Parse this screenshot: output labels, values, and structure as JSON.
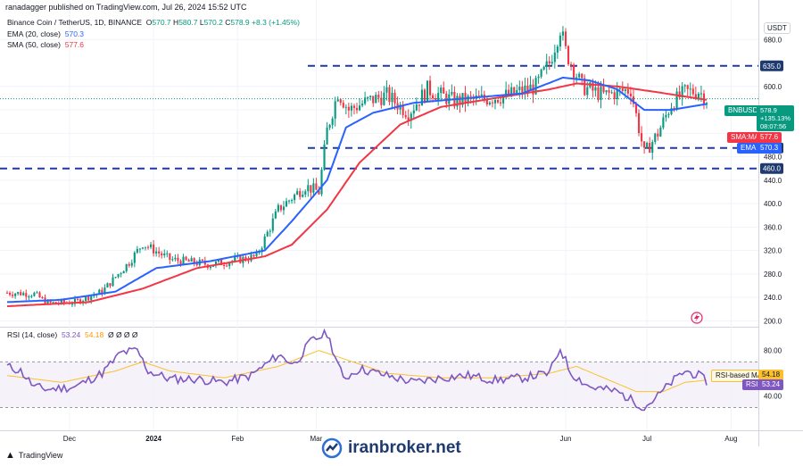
{
  "header": {
    "publisher": "ranadagger published on TradingView.com, Jul 26, 2024 15:52 UTC"
  },
  "symbol": {
    "name": "Binance Coin / TetherUS, 1D, BINANCE",
    "o_label": "O",
    "o": "570.7",
    "h_label": "H",
    "h": "580.7",
    "l_label": "L",
    "l": "570.2",
    "c_label": "C",
    "c": "578.9",
    "change": "+8.3 (+1.45%)"
  },
  "indicators": {
    "ema_label": "EMA (20, close)",
    "ema_value": "570.3",
    "sma_label": "SMA (50, close)",
    "sma_value": "577.6",
    "rsi_label": "RSI (14, close)",
    "rsi_value": "53.24",
    "rsi_ma_value": "54.18",
    "rsi_extra": "Ø Ø Ø Ø"
  },
  "price_axis": {
    "currency": "USDT"
  },
  "tags": {
    "symbol_tag": "BNBUSDT",
    "price": "578.9",
    "pct": "+135.13%",
    "countdown": "08:07:56",
    "sma_ma_label": "SMA:MA",
    "sma_val": "577.6",
    "ema_label": "EMA",
    "ema_val": "570.3",
    "rsi_ma_label": "RSI-based MA",
    "rsi_ma_val": "54.18",
    "rsi_label": "RSI",
    "rsi_val": "53.24"
  },
  "levels": [
    {
      "value": 635.0,
      "label": "635.0"
    },
    {
      "value": 495.0,
      "label": "495.0"
    },
    {
      "value": 460.0,
      "label": "460.0"
    }
  ],
  "footer": {
    "brand": "TradingView"
  },
  "watermark": {
    "text": "iranbroker.net"
  },
  "colors": {
    "up": "#089981",
    "down": "#f23645",
    "ema": "#2962ff",
    "sma": "#f23645",
    "rsi": "#7e57c2",
    "rsi_ma": "#fbc02d"
  },
  "chart_data": [
    {
      "type": "candlestick",
      "title": "Binance Coin / TetherUS, 1D, BINANCE",
      "ylim": [
        190,
        720
      ],
      "y_ticks": [
        200,
        240,
        280,
        320,
        360,
        400,
        440,
        480,
        520,
        560,
        600,
        680
      ],
      "y_tick_labels": [
        "200.0",
        "240.0",
        "280.0",
        "320.0",
        "360.0",
        "400.0",
        "440.0",
        "480.0",
        "",
        "",
        "600.0",
        "680.0"
      ],
      "x_ticks": [
        "Dec",
        "2024",
        "Feb",
        "Mar",
        "Jun",
        "Jul",
        "Aug"
      ],
      "x_tick_days": [
        23,
        54,
        85,
        114,
        206,
        236,
        267
      ],
      "horizontal_levels": [
        635,
        495,
        460
      ],
      "series": [
        {
          "name": "Price",
          "anchors": [
            [
              0,
              248
            ],
            [
              10,
              246
            ],
            [
              15,
              230
            ],
            [
              25,
              232
            ],
            [
              35,
              250
            ],
            [
              45,
              300
            ],
            [
              50,
              332
            ],
            [
              60,
              305
            ],
            [
              75,
              296
            ],
            [
              85,
              304
            ],
            [
              92,
              310
            ],
            [
              100,
              390
            ],
            [
              110,
              430
            ],
            [
              115,
              420
            ],
            [
              118,
              525
            ],
            [
              122,
              590
            ],
            [
              126,
              560
            ],
            [
              133,
              575
            ],
            [
              140,
              585
            ],
            [
              148,
              555
            ],
            [
              155,
              595
            ],
            [
              165,
              575
            ],
            [
              175,
              578
            ],
            [
              185,
              585
            ],
            [
              195,
              600
            ],
            [
              200,
              640
            ],
            [
              204,
              700
            ],
            [
              206,
              660
            ],
            [
              212,
              600
            ],
            [
              220,
              585
            ],
            [
              230,
              595
            ],
            [
              235,
              485
            ],
            [
              240,
              520
            ],
            [
              245,
              570
            ],
            [
              250,
              590
            ],
            [
              255,
              592
            ],
            [
              258,
              579
            ]
          ]
        },
        {
          "name": "EMA (20, close)",
          "anchors": [
            [
              0,
              232
            ],
            [
              20,
              236
            ],
            [
              40,
              250
            ],
            [
              55,
              290
            ],
            [
              75,
              302
            ],
            [
              95,
              320
            ],
            [
              105,
              370
            ],
            [
              118,
              440
            ],
            [
              125,
              530
            ],
            [
              135,
              555
            ],
            [
              150,
              572
            ],
            [
              170,
              580
            ],
            [
              190,
              588
            ],
            [
              205,
              615
            ],
            [
              215,
              610
            ],
            [
              225,
              595
            ],
            [
              235,
              560
            ],
            [
              245,
              560
            ],
            [
              258,
              570
            ]
          ]
        },
        {
          "name": "SMA (50, close)",
          "anchors": [
            [
              0,
              225
            ],
            [
              30,
              232
            ],
            [
              50,
              255
            ],
            [
              70,
              290
            ],
            [
              95,
              310
            ],
            [
              105,
              330
            ],
            [
              118,
              390
            ],
            [
              130,
              470
            ],
            [
              145,
              535
            ],
            [
              160,
              565
            ],
            [
              180,
              580
            ],
            [
              200,
              595
            ],
            [
              210,
              605
            ],
            [
              225,
              600
            ],
            [
              240,
              590
            ],
            [
              258,
              577
            ]
          ]
        }
      ]
    },
    {
      "type": "line",
      "title": "RSI (14, close)",
      "ylim": [
        10,
        100
      ],
      "y_ticks": [
        40,
        60,
        80
      ],
      "y_tick_labels": [
        "40.00",
        "",
        "80.00"
      ],
      "bands": [
        30,
        70
      ],
      "series": [
        {
          "name": "RSI",
          "anchors": [
            [
              0,
              66
            ],
            [
              5,
              62
            ],
            [
              10,
              48
            ],
            [
              15,
              46
            ],
            [
              25,
              48
            ],
            [
              35,
              60
            ],
            [
              42,
              78
            ],
            [
              48,
              80
            ],
            [
              52,
              62
            ],
            [
              60,
              55
            ],
            [
              70,
              55
            ],
            [
              80,
              52
            ],
            [
              90,
              58
            ],
            [
              100,
              76
            ],
            [
              106,
              68
            ],
            [
              112,
              88
            ],
            [
              118,
              95
            ],
            [
              124,
              55
            ],
            [
              130,
              64
            ],
            [
              140,
              58
            ],
            [
              150,
              52
            ],
            [
              160,
              56
            ],
            [
              170,
              58
            ],
            [
              180,
              54
            ],
            [
              190,
              56
            ],
            [
              200,
              60
            ],
            [
              204,
              82
            ],
            [
              208,
              60
            ],
            [
              215,
              48
            ],
            [
              225,
              44
            ],
            [
              235,
              30
            ],
            [
              240,
              40
            ],
            [
              245,
              52
            ],
            [
              250,
              62
            ],
            [
              255,
              58
            ],
            [
              258,
              53
            ]
          ]
        },
        {
          "name": "RSI-based MA",
          "anchors": [
            [
              0,
              58
            ],
            [
              20,
              52
            ],
            [
              40,
              62
            ],
            [
              50,
              70
            ],
            [
              60,
              62
            ],
            [
              80,
              56
            ],
            [
              100,
              66
            ],
            [
              115,
              80
            ],
            [
              125,
              72
            ],
            [
              140,
              60
            ],
            [
              160,
              56
            ],
            [
              180,
              56
            ],
            [
              200,
              60
            ],
            [
              210,
              66
            ],
            [
              220,
              56
            ],
            [
              232,
              44
            ],
            [
              242,
              44
            ],
            [
              250,
              52
            ],
            [
              258,
              54
            ]
          ]
        }
      ]
    }
  ]
}
